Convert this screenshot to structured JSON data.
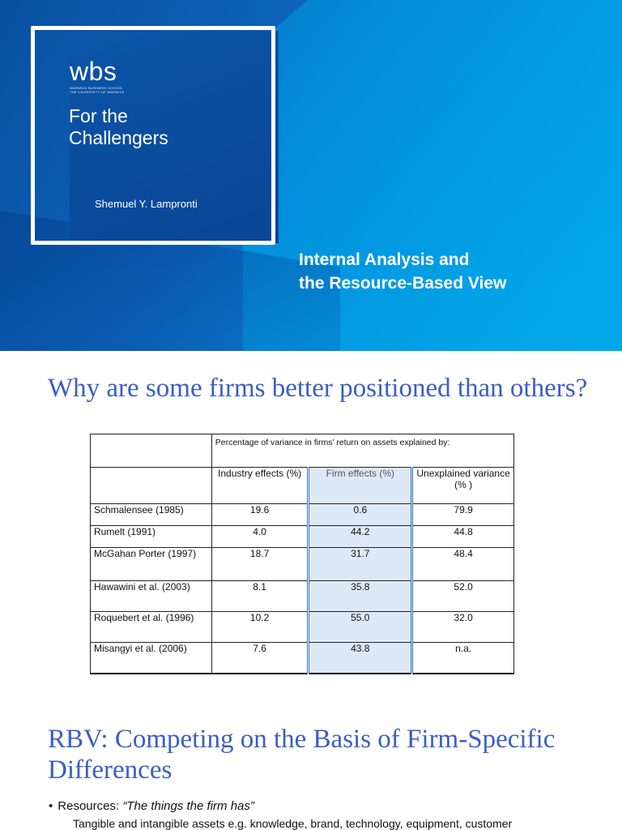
{
  "cover": {
    "logo": "wbs",
    "logo_sub1": "WARWICK BUSINESS SCHOOL",
    "logo_sub2": "THE UNIVERSITY OF WARWICK",
    "tagline_line1": "For the",
    "tagline_line2": "Challengers",
    "author": "Shemuel Y. Lampronti",
    "title_line1": "Internal Analysis and",
    "title_line2": "the Resource-Based View",
    "colors": {
      "dark_blue": "#0a4596",
      "light_blue": "#0aa2e6"
    }
  },
  "slide2": {
    "heading": "Why are some firms better positioned than others?",
    "table": {
      "caption": "Percentage of variance in firms’ return on assets explained by:",
      "col_industry": "Industry effects (%)",
      "col_firm": "Firm effects (%)",
      "col_unexplained": "Unexplained variance (% )",
      "rows": [
        {
          "study": "Schmalensee (1985)",
          "industry": "19.6",
          "firm": "0.6",
          "unexplained": "79.9"
        },
        {
          "study": "Rumelt (1991)",
          "industry": "4.0",
          "firm": "44.2",
          "unexplained": "44.8"
        },
        {
          "study": "McGahan Porter (1997)",
          "industry": "18.7",
          "firm": "31.7",
          "unexplained": "48.4"
        },
        {
          "study": "Hawawini et al. (2003)",
          "industry": "8.1",
          "firm": "35.8",
          "unexplained": "52.0"
        },
        {
          "study": "Roquebert et al. (1996)",
          "industry": "10.2",
          "firm": "55.0",
          "unexplained": "32.0"
        },
        {
          "study": "Misangyi et al. (2006)",
          "industry": "7.6",
          "firm": "43.8",
          "unexplained": "n.a."
        }
      ]
    }
  },
  "slide3": {
    "heading": "RBV: Competing on the Basis of Firm-Specific Differences",
    "bullet_label": "Resources: ",
    "bullet_quote": "“The things the firm has”",
    "subline": "Tangible and intangible assets e.g. knowledge, brand, technology, equipment, customer"
  }
}
